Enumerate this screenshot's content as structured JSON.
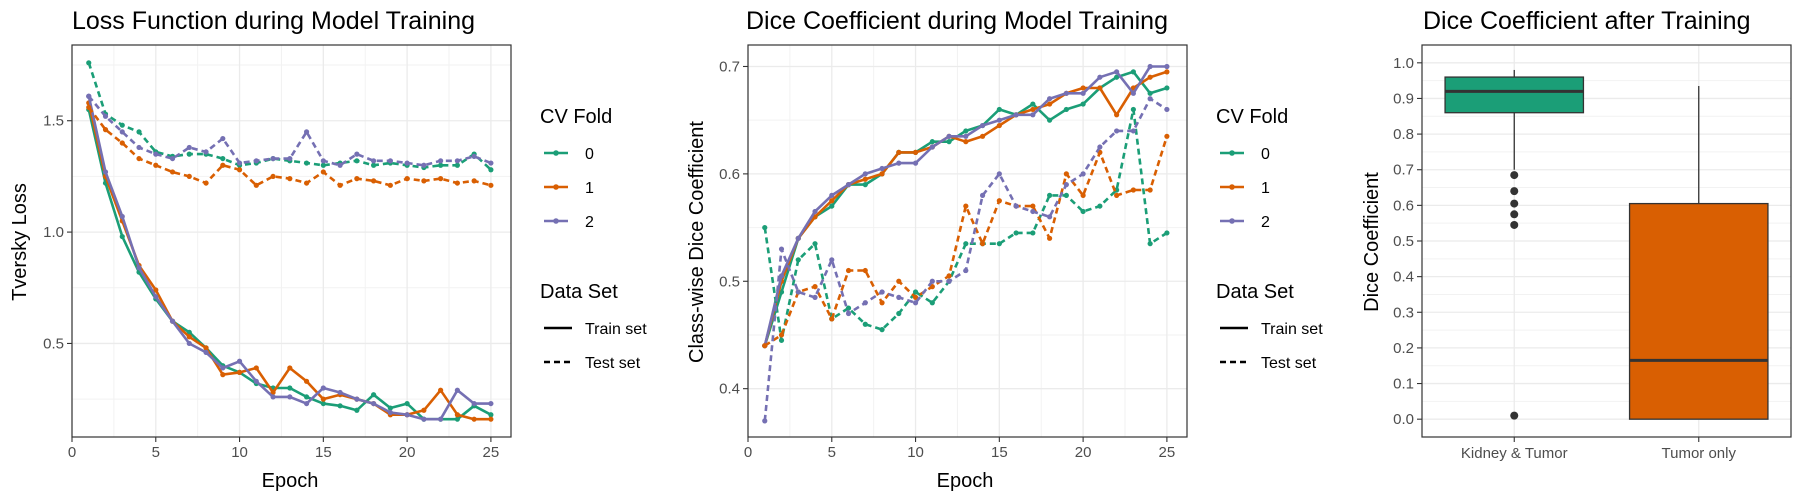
{
  "chart_data": [
    {
      "type": "line",
      "title": "Loss Function during Model Training",
      "xlabel": "Epoch",
      "ylabel": "Tversky Loss",
      "xlim": [
        0,
        26.2
      ],
      "ylim": [
        0.08,
        1.84
      ],
      "xticks": [
        0,
        5,
        10,
        15,
        20,
        25
      ],
      "yticks": [
        0.5,
        1.0,
        1.5
      ],
      "ytick_labels": [
        "0.5",
        "1.0",
        "1.5"
      ],
      "grid": true,
      "x": [
        1,
        2,
        3,
        4,
        5,
        6,
        7,
        8,
        9,
        10,
        11,
        12,
        13,
        14,
        15,
        16,
        17,
        18,
        19,
        20,
        21,
        22,
        23,
        24,
        25
      ],
      "legend": [
        {
          "title": "CV Fold",
          "items": [
            "0",
            "1",
            "2"
          ]
        },
        {
          "title": "Data Set",
          "items": [
            "Train set",
            "Test set"
          ]
        }
      ],
      "series": [
        {
          "fold": "0",
          "set": "Train set",
          "color": "#1b9e77",
          "values": [
            1.55,
            1.22,
            0.98,
            0.82,
            0.7,
            0.6,
            0.55,
            0.48,
            0.4,
            0.37,
            0.32,
            0.3,
            0.3,
            0.26,
            0.23,
            0.22,
            0.2,
            0.27,
            0.21,
            0.23,
            0.16,
            0.16,
            0.16,
            0.22,
            0.18
          ]
        },
        {
          "fold": "1",
          "set": "Train set",
          "color": "#d95f02",
          "values": [
            1.58,
            1.25,
            1.05,
            0.85,
            0.74,
            0.6,
            0.53,
            0.48,
            0.36,
            0.37,
            0.39,
            0.28,
            0.39,
            0.33,
            0.25,
            0.27,
            0.25,
            0.23,
            0.18,
            0.18,
            0.2,
            0.29,
            0.18,
            0.16,
            0.16
          ]
        },
        {
          "fold": "2",
          "set": "Train set",
          "color": "#7570b3",
          "values": [
            1.61,
            1.27,
            1.07,
            0.84,
            0.71,
            0.6,
            0.5,
            0.46,
            0.39,
            0.42,
            0.33,
            0.26,
            0.26,
            0.23,
            0.3,
            0.28,
            0.25,
            0.23,
            0.19,
            0.18,
            0.16,
            0.16,
            0.29,
            0.23,
            0.23
          ]
        },
        {
          "fold": "0",
          "set": "Test set",
          "color": "#1b9e77",
          "values": [
            1.76,
            1.53,
            1.48,
            1.45,
            1.36,
            1.34,
            1.35,
            1.35,
            1.33,
            1.3,
            1.31,
            1.33,
            1.32,
            1.31,
            1.3,
            1.31,
            1.32,
            1.3,
            1.31,
            1.3,
            1.29,
            1.3,
            1.3,
            1.35,
            1.28
          ]
        },
        {
          "fold": "1",
          "set": "Test set",
          "color": "#d95f02",
          "values": [
            1.56,
            1.46,
            1.4,
            1.33,
            1.3,
            1.27,
            1.25,
            1.22,
            1.3,
            1.28,
            1.21,
            1.25,
            1.24,
            1.22,
            1.27,
            1.21,
            1.24,
            1.23,
            1.21,
            1.24,
            1.23,
            1.24,
            1.22,
            1.23,
            1.21
          ]
        },
        {
          "fold": "2",
          "set": "Test set",
          "color": "#7570b3",
          "values": [
            1.61,
            1.52,
            1.45,
            1.38,
            1.35,
            1.33,
            1.38,
            1.36,
            1.42,
            1.31,
            1.32,
            1.33,
            1.33,
            1.45,
            1.32,
            1.3,
            1.35,
            1.32,
            1.32,
            1.31,
            1.3,
            1.32,
            1.32,
            1.34,
            1.31
          ]
        }
      ]
    },
    {
      "type": "line",
      "title": "Dice Coefficient during Model Training",
      "xlabel": "Epoch",
      "ylabel": "Class-wise Dice Coefficient",
      "xlim": [
        0,
        26.2
      ],
      "ylim": [
        0.355,
        0.72
      ],
      "xticks": [
        0,
        5,
        10,
        15,
        20,
        25
      ],
      "yticks": [
        0.4,
        0.5,
        0.6,
        0.7
      ],
      "ytick_labels": [
        "0.4",
        "0.5",
        "0.6",
        "0.7"
      ],
      "grid": true,
      "x": [
        1,
        2,
        3,
        4,
        5,
        6,
        7,
        8,
        9,
        10,
        11,
        12,
        13,
        14,
        15,
        16,
        17,
        18,
        19,
        20,
        21,
        22,
        23,
        24,
        25
      ],
      "legend": [
        {
          "title": "CV Fold",
          "items": [
            "0",
            "1",
            "2"
          ]
        },
        {
          "title": "Data Set",
          "items": [
            "Train set",
            "Test set"
          ]
        }
      ],
      "series": [
        {
          "fold": "0",
          "set": "Train set",
          "color": "#1b9e77",
          "values": [
            0.44,
            0.49,
            0.54,
            0.56,
            0.57,
            0.59,
            0.59,
            0.6,
            0.62,
            0.62,
            0.63,
            0.63,
            0.64,
            0.645,
            0.66,
            0.655,
            0.665,
            0.65,
            0.66,
            0.665,
            0.68,
            0.69,
            0.695,
            0.675,
            0.68
          ]
        },
        {
          "fold": "1",
          "set": "Train set",
          "color": "#d95f02",
          "values": [
            0.44,
            0.5,
            0.54,
            0.56,
            0.575,
            0.59,
            0.595,
            0.6,
            0.62,
            0.62,
            0.625,
            0.635,
            0.63,
            0.635,
            0.645,
            0.655,
            0.66,
            0.665,
            0.675,
            0.68,
            0.68,
            0.655,
            0.68,
            0.69,
            0.695
          ]
        },
        {
          "fold": "2",
          "set": "Train set",
          "color": "#7570b3",
          "values": [
            0.44,
            0.505,
            0.54,
            0.565,
            0.58,
            0.59,
            0.6,
            0.605,
            0.61,
            0.61,
            0.625,
            0.635,
            0.635,
            0.645,
            0.65,
            0.655,
            0.655,
            0.67,
            0.675,
            0.675,
            0.69,
            0.695,
            0.675,
            0.7,
            0.7
          ]
        },
        {
          "fold": "0",
          "set": "Test set",
          "color": "#1b9e77",
          "values": [
            0.55,
            0.445,
            0.52,
            0.535,
            0.465,
            0.475,
            0.46,
            0.455,
            0.47,
            0.49,
            0.48,
            0.5,
            0.535,
            0.535,
            0.535,
            0.545,
            0.545,
            0.58,
            0.58,
            0.565,
            0.57,
            0.585,
            0.66,
            0.535,
            0.545
          ]
        },
        {
          "fold": "1",
          "set": "Test set",
          "color": "#d95f02",
          "values": [
            0.44,
            0.45,
            0.49,
            0.495,
            0.465,
            0.51,
            0.51,
            0.48,
            0.5,
            0.485,
            0.495,
            0.505,
            0.57,
            0.535,
            0.575,
            0.57,
            0.57,
            0.54,
            0.6,
            0.58,
            0.62,
            0.58,
            0.585,
            0.585,
            0.635
          ]
        },
        {
          "fold": "2",
          "set": "Test set",
          "color": "#7570b3",
          "values": [
            0.37,
            0.53,
            0.49,
            0.485,
            0.52,
            0.47,
            0.48,
            0.49,
            0.485,
            0.48,
            0.5,
            0.5,
            0.51,
            0.58,
            0.6,
            0.57,
            0.565,
            0.56,
            0.59,
            0.6,
            0.625,
            0.64,
            0.64,
            0.67,
            0.66
          ]
        }
      ]
    },
    {
      "type": "box",
      "title": "Dice Coefficient after Training",
      "xlabel": "",
      "ylabel": "Dice Coefficient",
      "ylim": [
        -0.05,
        1.05
      ],
      "yticks": [
        0.0,
        0.1,
        0.2,
        0.3,
        0.4,
        0.5,
        0.6,
        0.7,
        0.8,
        0.9,
        1.0
      ],
      "ytick_labels": [
        "0.0",
        "0.1",
        "0.2",
        "0.3",
        "0.4",
        "0.5",
        "0.6",
        "0.7",
        "0.8",
        "0.9",
        "1.0"
      ],
      "grid": true,
      "categories": [
        "Kidney & Tumor",
        "Tumor only"
      ],
      "boxes": [
        {
          "category": "Kidney & Tumor",
          "color": "#1b9e77",
          "q1": 0.86,
          "median": 0.92,
          "q3": 0.96,
          "whisker_low": 0.7,
          "whisker_high": 0.98,
          "outliers": [
            0.685,
            0.64,
            0.605,
            0.575,
            0.545,
            0.01
          ]
        },
        {
          "category": "Tumor only",
          "color": "#d95f02",
          "q1": 0.0,
          "median": 0.165,
          "q3": 0.605,
          "whisker_low": 0.0,
          "whisker_high": 0.935,
          "outliers": []
        }
      ]
    }
  ]
}
